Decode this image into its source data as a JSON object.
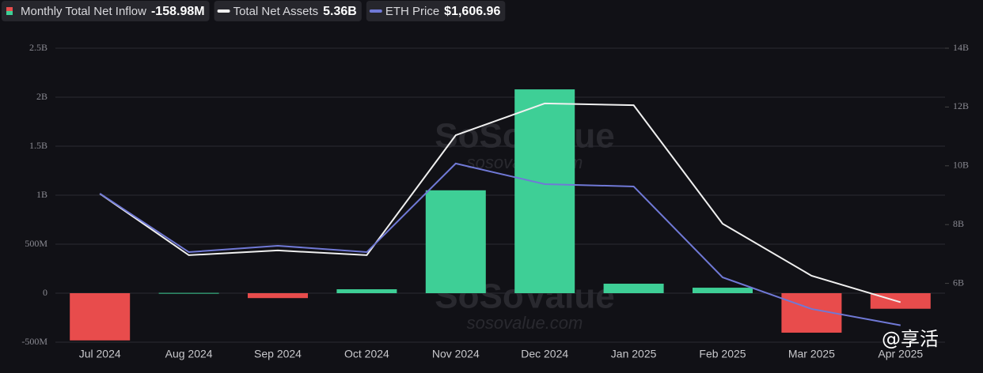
{
  "chart_data": {
    "type": "bar-line",
    "categories": [
      "Jul 2024",
      "Aug 2024",
      "Sep 2024",
      "Oct 2024",
      "Nov 2024",
      "Dec 2024",
      "Jan 2025",
      "Feb 2025",
      "Mar 2025",
      "Apr 2025"
    ],
    "series": [
      {
        "name": "Monthly Total Net Inflow",
        "legend_value": "-158.98M",
        "type": "bar",
        "pos_color": "#3ecf96",
        "neg_color": "#e84c4c",
        "values": [
          -482000000,
          3000000,
          -50000000,
          40000000,
          1050000000,
          2080000000,
          97000000,
          56000000,
          -403000000,
          -158980000
        ]
      },
      {
        "name": "Total Net Assets",
        "legend_value": "5.36B",
        "type": "line",
        "axis": "y2",
        "color": "#f0f0f0",
        "values": [
          9050000000,
          6960000000,
          7120000000,
          6960000000,
          11040000000,
          12120000000,
          12060000000,
          8030000000,
          6260000000,
          5360000000
        ]
      },
      {
        "name": "ETH Price",
        "legend_value": "$1,606.96",
        "type": "line",
        "axis": "y3",
        "color": "#7079d6",
        "values": [
          3220,
          2503,
          2581,
          2503,
          3588,
          3336,
          3307,
          2194,
          1807,
          1606.96
        ]
      }
    ],
    "ylim": [
      -500000000,
      2500000000
    ],
    "yticks": [
      {
        "value": -500000000,
        "label": "-500M"
      },
      0,
      {
        "value": 500000000,
        "label": "500M"
      },
      {
        "value": 1000000000,
        "label": "1B"
      },
      {
        "value": 1500000000,
        "label": "1.5B"
      },
      {
        "value": 2000000000,
        "label": "2B"
      },
      {
        "value": 2500000000,
        "label": "2.5B"
      }
    ],
    "y2lim": [
      4000000000,
      14000000000
    ],
    "y2ticks": [
      {
        "value": 6000000000,
        "label": "6B"
      },
      {
        "value": 8000000000,
        "label": "8B"
      },
      {
        "value": 10000000000,
        "label": "10B"
      },
      {
        "value": 12000000000,
        "label": "12B"
      },
      {
        "value": 14000000000,
        "label": "14B"
      }
    ],
    "y3lim": [
      1400,
      5000
    ],
    "grid": true,
    "watermarks": [
      "SoSoValue",
      "sosovalue.com",
      "@享活"
    ]
  }
}
